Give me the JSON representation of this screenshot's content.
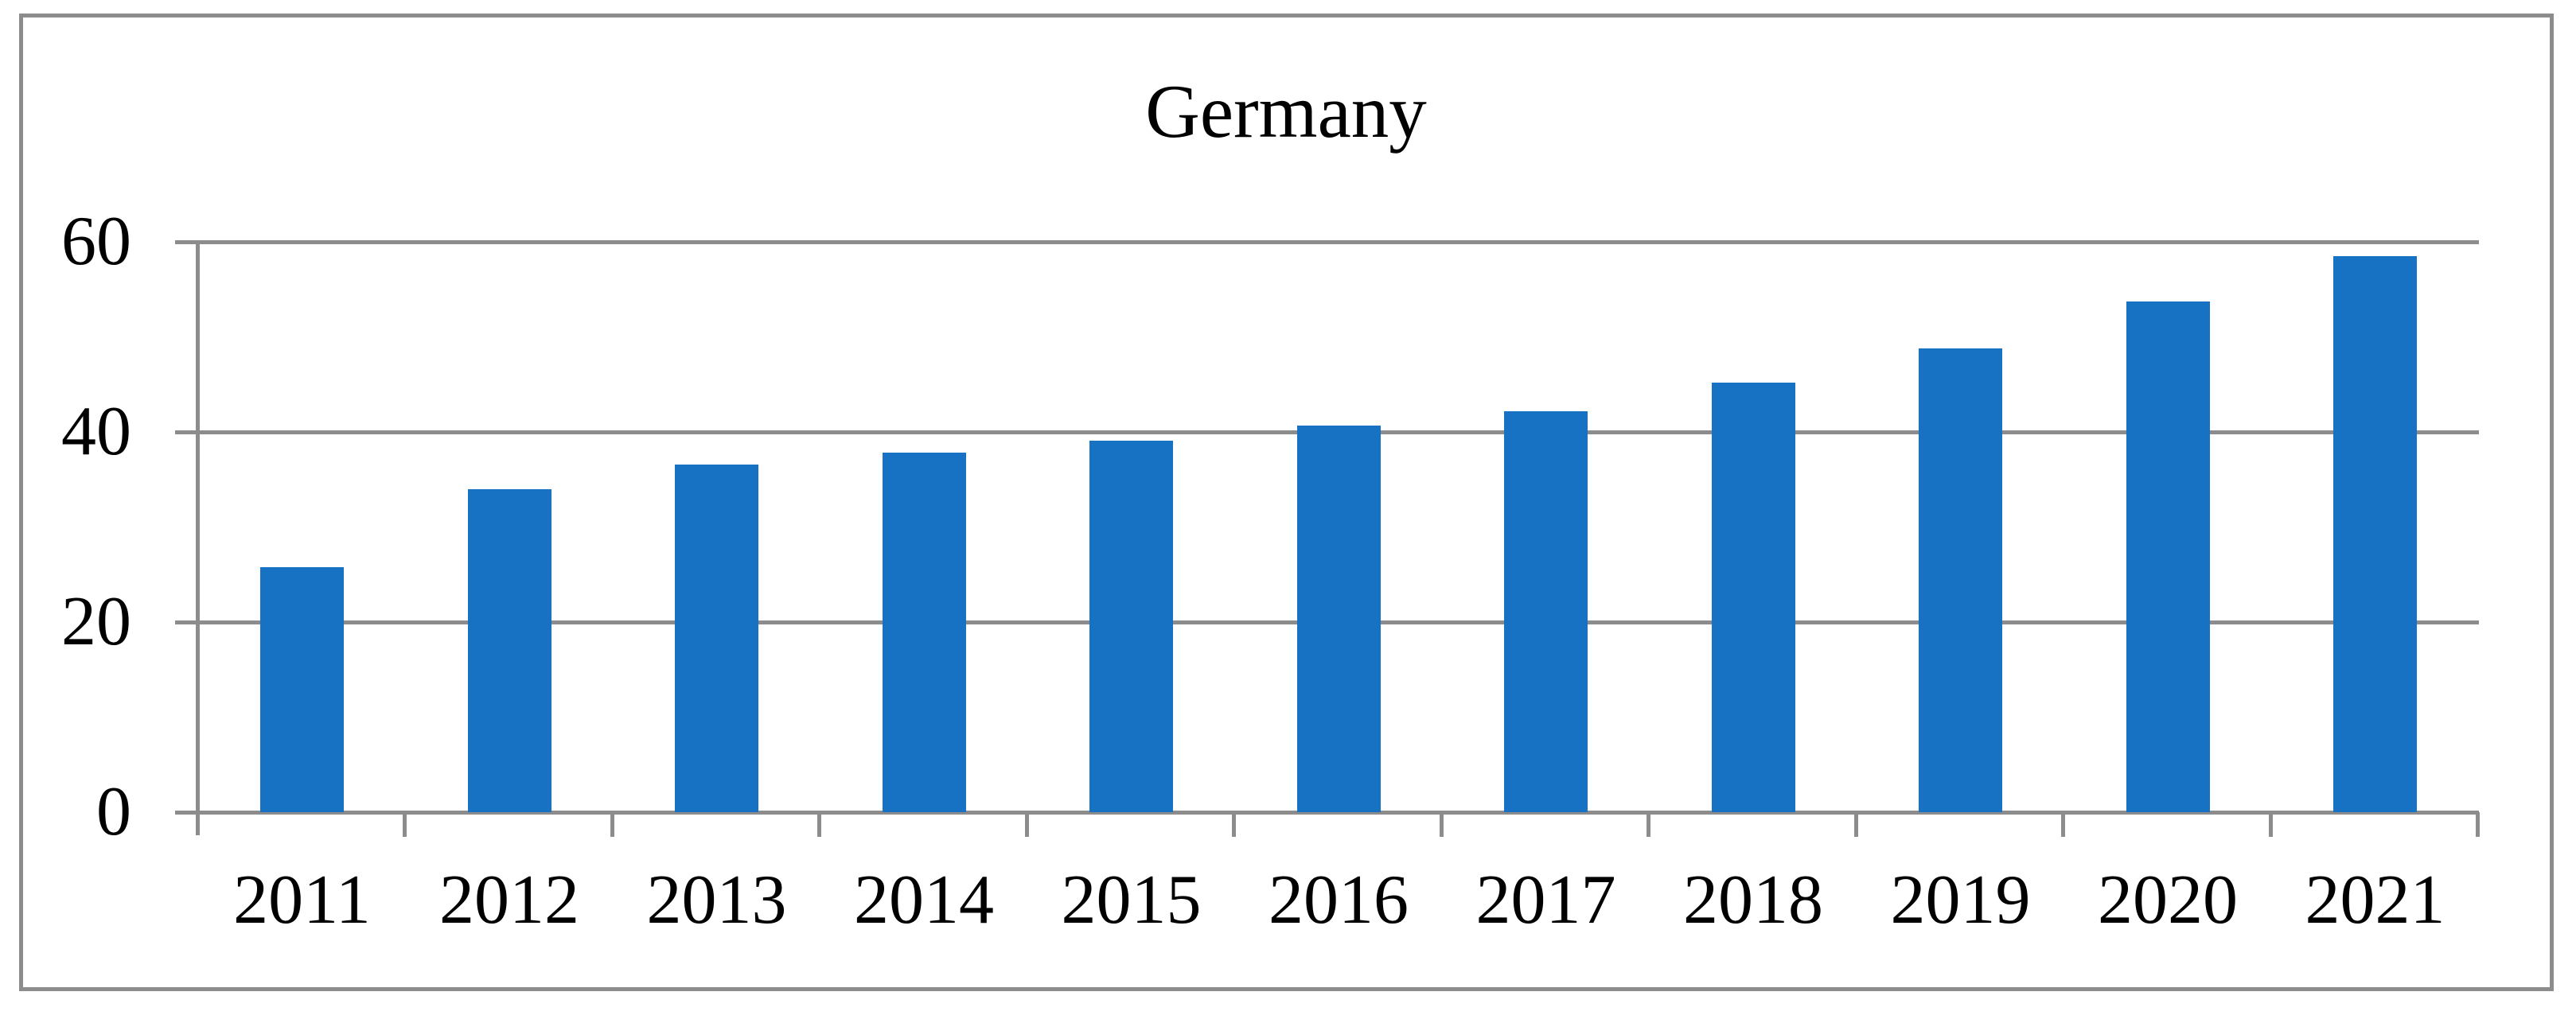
{
  "chart_data": {
    "type": "bar",
    "title": "Germany",
    "categories": [
      "2011",
      "2012",
      "2013",
      "2014",
      "2015",
      "2016",
      "2017",
      "2018",
      "2019",
      "2020",
      "2021"
    ],
    "values": [
      25.8,
      34.0,
      36.6,
      37.8,
      39.1,
      40.7,
      42.2,
      45.2,
      48.8,
      53.7,
      58.5
    ],
    "y_ticks": [
      "0",
      "20",
      "40",
      "60"
    ],
    "y_tick_values": [
      0,
      20,
      40,
      60
    ],
    "ylim": [
      0,
      60
    ],
    "xlabel": "",
    "ylabel": "",
    "grid": "horizontal",
    "legend": "none",
    "colors": {
      "bar": "#1772C4",
      "gridline": "#8C8C8C",
      "axis": "#8C8C8C",
      "frame_border": "#8C8C8C",
      "text": "#000000",
      "background": "#FFFFFF"
    }
  }
}
